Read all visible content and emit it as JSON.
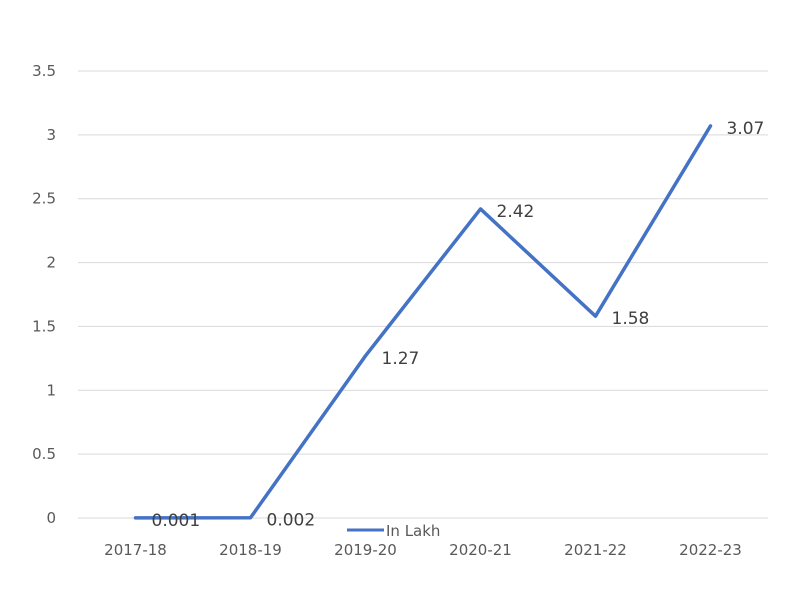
{
  "chart_data": {
    "type": "line",
    "categories": [
      "2017-18",
      "2018-19",
      "2019-20",
      "2020-21",
      "2021-22",
      "2022-23"
    ],
    "series": [
      {
        "name": "In Lakh",
        "values": [
          0.001,
          0.002,
          1.27,
          2.42,
          1.58,
          3.07
        ],
        "labels": [
          "0.001",
          "0.002",
          "1.27",
          "2.42",
          "1.58",
          "3.07"
        ],
        "color": "#4472c4"
      }
    ],
    "title": "",
    "xlabel": "",
    "ylabel": "",
    "ylim": [
      0,
      3.5
    ],
    "yticks": [
      0,
      0.5,
      1,
      1.5,
      2,
      2.5,
      3,
      3.5
    ],
    "ytick_labels": [
      "0",
      "0.5",
      "1",
      "1.5",
      "2",
      "2.5",
      "3",
      "3.5"
    ],
    "grid": true,
    "legend_position": "bottom"
  }
}
